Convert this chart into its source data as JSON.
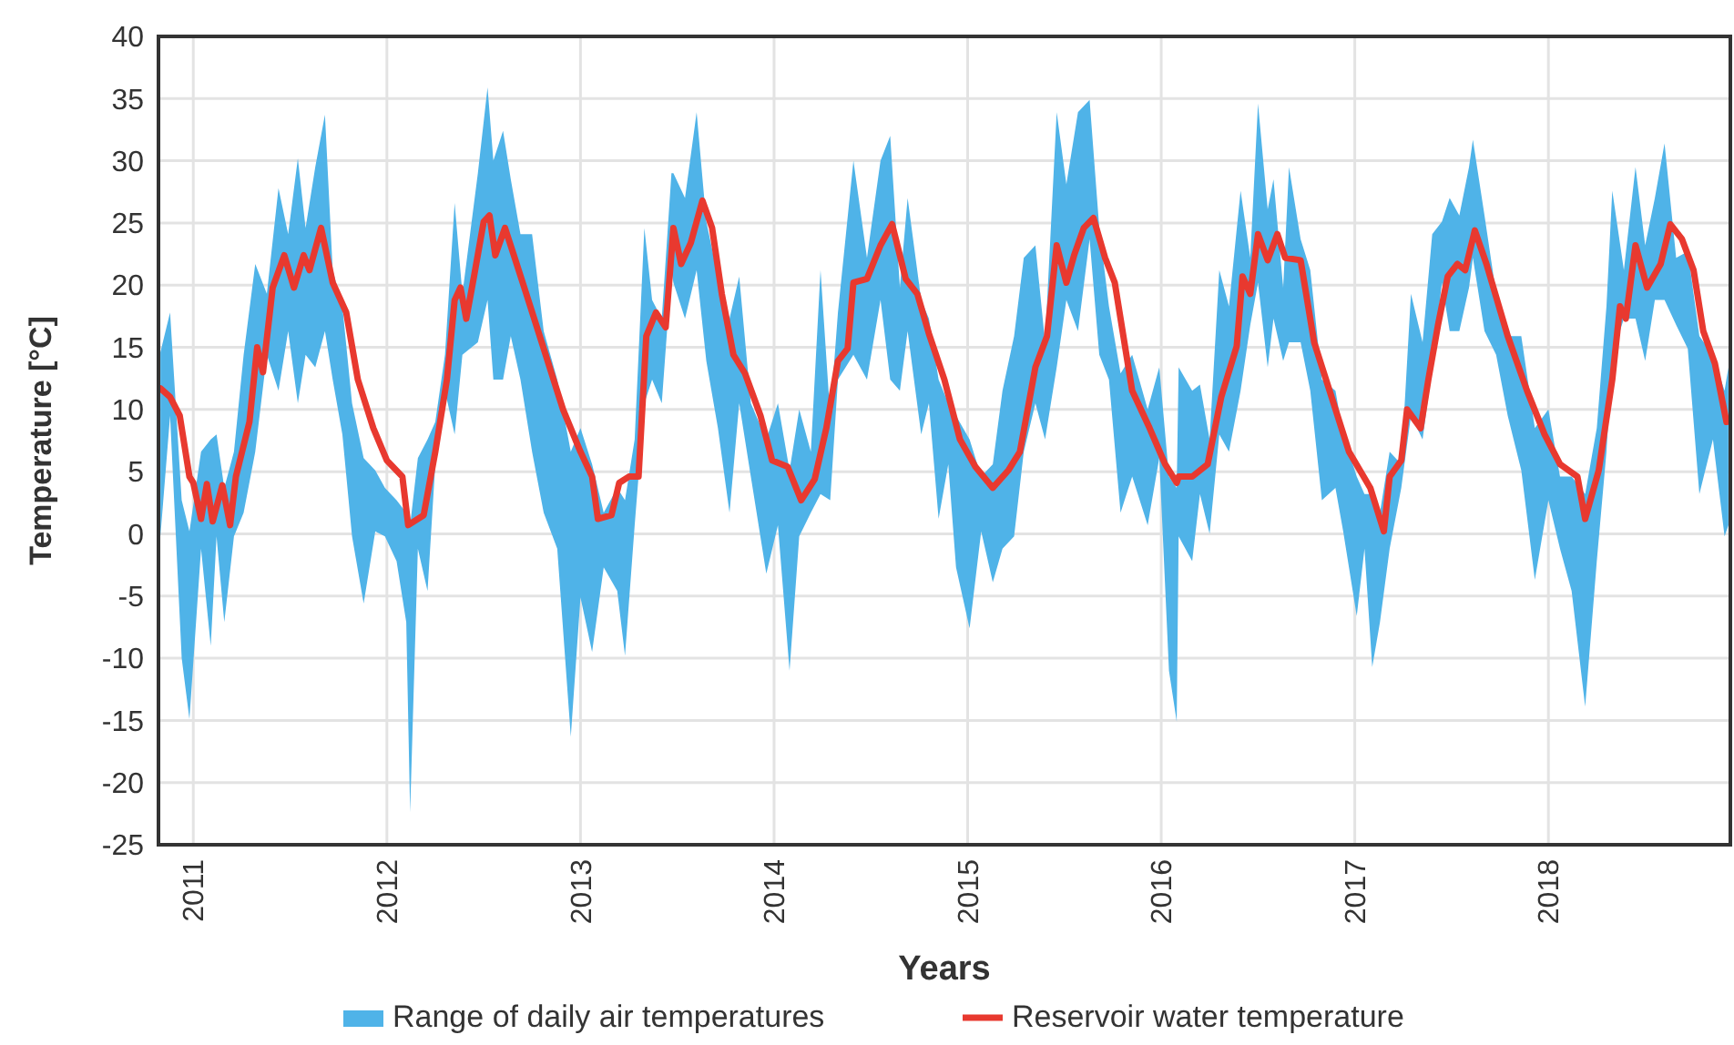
{
  "chart_data": {
    "type": "line",
    "xlabel": "Years",
    "ylabel": "Temperature [°C]",
    "xlim": [
      2010.82,
      2018.94
    ],
    "xticks": [
      2011,
      2012,
      2013,
      2014,
      2015,
      2016,
      2017,
      2018
    ],
    "ylim": [
      -25,
      40
    ],
    "yticks": [
      -25,
      -20,
      -15,
      -10,
      -5,
      0,
      5,
      10,
      15,
      20,
      25,
      30,
      35,
      40
    ],
    "grid": true,
    "legend": "bottom",
    "series": [
      {
        "type": "line",
        "name": "Range of daily air temperatures",
        "color": "#4fb3e8",
        "values": [
          null,
          null,
          null,
          null,
          null,
          null,
          null,
          null,
          null,
          null,
          null,
          null,
          null,
          null,
          null,
          null,
          null,
          null,
          null,
          null,
          null,
          null,
          null,
          null,
          null,
          null,
          null,
          null,
          null,
          null,
          null,
          null,
          null,
          null,
          null,
          null,
          null,
          null,
          null,
          null,
          null,
          null,
          null,
          null,
          null,
          null,
          null,
          null,
          null,
          null,
          null,
          null,
          null,
          null,
          null,
          null,
          null,
          null,
          null,
          null,
          null,
          null,
          null,
          null,
          null,
          null,
          null,
          null,
          null,
          null,
          null,
          null,
          null,
          null,
          null,
          null,
          null,
          null,
          null,
          null,
          null,
          null,
          null,
          null,
          null,
          null,
          null,
          null,
          null,
          null,
          null,
          null,
          null,
          null,
          null,
          null,
          null,
          null,
          null,
          null,
          null,
          null,
          null,
          null,
          null,
          null,
          null,
          null,
          null,
          null,
          null,
          null,
          null,
          null,
          null,
          null,
          null,
          null,
          null,
          null,
          null,
          null,
          null,
          null,
          null,
          null,
          null,
          null,
          null,
          null,
          null,
          null,
          null,
          null,
          null,
          null,
          null,
          null,
          null,
          null,
          null,
          null,
          null,
          null,
          null,
          null,
          null,
          null,
          null,
          null,
          null,
          null,
          null,
          null,
          null
        ],
        "x": [
          2010.83,
          2010.88,
          2010.94,
          2010.98,
          2011.04,
          2011.09,
          2011.12,
          2011.16,
          2011.21,
          2011.26,
          2011.32,
          2011.38,
          2011.44,
          2011.49,
          2011.54,
          2011.58,
          2011.63,
          2011.68,
          2011.72,
          2011.77,
          2011.82,
          2011.88,
          2011.94,
          2011.99,
          2012.05,
          2012.1,
          2012.12,
          2012.16,
          2012.21,
          2012.25,
          2012.3,
          2012.35,
          2012.39,
          2012.47,
          2012.52,
          2012.55,
          2012.6,
          2012.64,
          2012.69,
          2012.75,
          2012.81,
          2012.88,
          2012.95,
          2013.0,
          2013.06,
          2013.12,
          2013.19,
          2013.23,
          2013.28,
          2013.33,
          2013.37,
          2013.42,
          2013.47,
          2013.48,
          2013.54,
          2013.6,
          2013.65,
          2013.71,
          2013.77,
          2013.82,
          2013.88,
          2013.96,
          2014.02,
          2014.08,
          2014.13,
          2014.19,
          2014.24,
          2014.29,
          2014.33,
          2014.41,
          2014.48,
          2014.55,
          2014.6,
          2014.65,
          2014.69,
          2014.76,
          2014.8,
          2014.85,
          2014.9,
          2014.94,
          2015.01,
          2015.07,
          2015.13,
          2015.18,
          2015.24,
          2015.29,
          2015.35,
          2015.4,
          2015.46,
          2015.51,
          2015.57,
          2015.63,
          2015.68,
          2015.73,
          2015.79,
          2015.85,
          2015.93,
          2015.99,
          2016.04,
          2016.08,
          2016.09,
          2016.16,
          2016.2,
          2016.25,
          2016.3,
          2016.35,
          2016.41,
          2016.46,
          2016.5,
          2016.55,
          2016.58,
          2016.63,
          2016.66,
          2016.72,
          2016.77,
          2016.83,
          2016.9,
          2016.94,
          2017.01,
          2017.05,
          2017.09,
          2017.13,
          2017.18,
          2017.24,
          2017.29,
          2017.35,
          2017.4,
          2017.45,
          2017.49,
          2017.54,
          2017.59,
          2017.61,
          2017.67,
          2017.73,
          2017.79,
          2017.86,
          2017.93,
          2018.0,
          2018.06,
          2018.12,
          2018.19,
          2018.25,
          2018.3,
          2018.33,
          2018.39,
          2018.45,
          2018.5,
          2018.55,
          2018.6,
          2018.66,
          2018.72,
          2018.78,
          2018.85,
          2018.91,
          2018.93
        ],
        "upper": [
          14.6,
          17.8,
          2.7,
          0.2,
          6.6,
          7.6,
          8,
          3.7,
          6.6,
          14.4,
          21.7,
          19.3,
          27.8,
          24.1,
          30.2,
          24.6,
          29.5,
          33.7,
          21.2,
          18.3,
          10.5,
          6.1,
          5.1,
          3.7,
          2.7,
          1.7,
          0.7,
          6.1,
          7.6,
          9,
          14.4,
          26.6,
          19.3,
          29,
          35.9,
          30,
          32.4,
          28.5,
          24.1,
          24.1,
          16.3,
          12.4,
          6.6,
          8.5,
          5.6,
          1.7,
          3.7,
          2.7,
          7.6,
          24.6,
          18.8,
          17.3,
          29,
          29,
          27,
          33.9,
          25.1,
          20.7,
          17.3,
          20.7,
          10.5,
          7.6,
          10.5,
          5.1,
          10,
          6.6,
          21.2,
          9.5,
          17.8,
          30,
          22.2,
          30,
          32,
          19.8,
          27,
          18.8,
          17.3,
          12.4,
          10.5,
          9.5,
          7.6,
          4.6,
          5.6,
          11.5,
          15.9,
          22.2,
          23.2,
          15.4,
          33.9,
          28.1,
          33.9,
          34.9,
          24.6,
          18.3,
          12.9,
          14.4,
          10,
          13.4,
          4.6,
          3.7,
          13.4,
          11.5,
          12,
          7.6,
          21.2,
          18.3,
          27.6,
          22.2,
          34.6,
          26.1,
          28.5,
          19.8,
          29.5,
          23.7,
          21.2,
          12.4,
          11.5,
          8,
          4.6,
          3.2,
          3.2,
          1.7,
          6.6,
          5.6,
          19.3,
          15.4,
          24.1,
          25.1,
          27,
          25.6,
          29.5,
          31.7,
          25.6,
          19.3,
          15.9,
          15.9,
          8.5,
          10,
          4.6,
          4.6,
          3.2,
          8.5,
          18.3,
          27.6,
          21.2,
          29.5,
          23.2,
          27,
          31.4,
          22.2,
          22.7,
          15.9,
          14.4,
          11.5,
          13.4
        ],
        "lower": [
          -0.2,
          9.5,
          -10,
          -14.9,
          -1.2,
          -9,
          -0.2,
          -7.1,
          -0.2,
          1.7,
          6.6,
          14.4,
          11.5,
          16.3,
          10.5,
          14.4,
          13.4,
          16.3,
          12.4,
          8,
          -0.2,
          -5.6,
          0.2,
          -0.2,
          -2.2,
          -7.1,
          -22.4,
          -1.2,
          -4.6,
          5.6,
          11.5,
          8,
          14.4,
          15.4,
          18.8,
          12.4,
          12.4,
          15.9,
          12.4,
          6.6,
          1.7,
          -1.2,
          -16.3,
          -5.1,
          -9.5,
          -2.7,
          -4.6,
          -9.8,
          0.7,
          10.5,
          12.4,
          10.5,
          21.2,
          20.2,
          17.3,
          21.2,
          13.9,
          8.5,
          1.7,
          10.5,
          4.6,
          -3.2,
          0.7,
          -11,
          -0.2,
          1.7,
          3.2,
          2.7,
          12.4,
          14.4,
          12.4,
          18.8,
          12.4,
          11.5,
          16.3,
          8,
          10.5,
          1.2,
          5.6,
          -2.7,
          -7.6,
          0.2,
          -3.9,
          -1.2,
          -0.2,
          6.6,
          10.5,
          7.6,
          13.4,
          18.8,
          16.3,
          23.7,
          14.4,
          12.4,
          1.7,
          4.6,
          0.7,
          6.1,
          -11,
          -15.1,
          -0.2,
          -2.2,
          3.2,
          0,
          8,
          6.6,
          11.5,
          16.8,
          20.2,
          13.4,
          17.3,
          13.9,
          15.4,
          15.4,
          11.5,
          2.7,
          3.7,
          0.2,
          -6.6,
          -1.2,
          -10.7,
          -7.1,
          -1.2,
          3.7,
          9.5,
          7.6,
          13.4,
          20.2,
          16.3,
          16.3,
          19.8,
          22.2,
          16.3,
          14.4,
          9.5,
          5.1,
          -3.7,
          2.7,
          -1.2,
          -4.6,
          -13.9,
          -2.2,
          6.6,
          14.4,
          17.3,
          17.3,
          13.9,
          18.8,
          18.8,
          16.8,
          14.9,
          3.2,
          7.6,
          -0.2,
          0.7
        ]
      },
      {
        "name": "Reservoir water temperature",
        "color": "#e8392f",
        "x": [
          2010.83,
          2010.88,
          2010.93,
          2010.98,
          2011.0,
          2011.04,
          2011.07,
          2011.1,
          2011.15,
          2011.19,
          2011.22,
          2011.29,
          2011.33,
          2011.36,
          2011.41,
          2011.47,
          2011.52,
          2011.57,
          2011.6,
          2011.66,
          2011.72,
          2011.79,
          2011.85,
          2011.93,
          2012.0,
          2012.08,
          2012.11,
          2012.19,
          2012.25,
          2012.31,
          2012.35,
          2012.38,
          2012.41,
          2012.45,
          2012.5,
          2012.53,
          2012.56,
          2012.61,
          2012.66,
          2012.72,
          2012.81,
          2012.91,
          2013.0,
          2013.06,
          2013.09,
          2013.16,
          2013.2,
          2013.25,
          2013.3,
          2013.34,
          2013.39,
          2013.44,
          2013.48,
          2013.52,
          2013.57,
          2013.63,
          2013.68,
          2013.73,
          2013.79,
          2013.85,
          2013.93,
          2013.99,
          2014.07,
          2014.14,
          2014.21,
          2014.27,
          2014.33,
          2014.38,
          2014.41,
          2014.48,
          2014.55,
          2014.61,
          2014.68,
          2014.74,
          2014.8,
          2014.88,
          2014.96,
          2015.04,
          2015.13,
          2015.21,
          2015.27,
          2015.35,
          2015.41,
          2015.46,
          2015.51,
          2015.55,
          2015.6,
          2015.65,
          2015.71,
          2015.76,
          2015.85,
          2015.94,
          2016.02,
          2016.08,
          2016.09,
          2016.16,
          2016.24,
          2016.31,
          2016.39,
          2016.42,
          2016.46,
          2016.5,
          2016.55,
          2016.6,
          2016.64,
          2016.72,
          2016.79,
          2016.88,
          2016.97,
          2017.08,
          2017.15,
          2017.18,
          2017.24,
          2017.27,
          2017.34,
          2017.38,
          2017.43,
          2017.48,
          2017.53,
          2017.57,
          2017.62,
          2017.68,
          2017.79,
          2017.89,
          2017.98,
          2018.06,
          2018.15,
          2018.19,
          2018.26,
          2018.33,
          2018.37,
          2018.4,
          2018.45,
          2018.51,
          2018.58,
          2018.63,
          2018.69,
          2018.75,
          2018.8,
          2018.86,
          2018.92
        ],
        "values": [
          11.7,
          11,
          9.5,
          4.6,
          4.1,
          1.2,
          4,
          1,
          3.9,
          0.7,
          4.6,
          9,
          15,
          13,
          19.8,
          22.4,
          19.8,
          22.4,
          21.2,
          24.6,
          20.2,
          17.8,
          12.4,
          8.5,
          5.9,
          4.6,
          0.7,
          1.5,
          6.6,
          12.4,
          18.8,
          19.8,
          17.3,
          20.7,
          25.1,
          25.6,
          22.4,
          24.6,
          22.2,
          19.3,
          14.9,
          10,
          6.6,
          4.6,
          1.2,
          1.5,
          4.1,
          4.6,
          4.6,
          15.9,
          17.8,
          16.6,
          24.6,
          21.7,
          23.4,
          26.8,
          24.6,
          19.3,
          14.4,
          12.9,
          9.5,
          5.9,
          5.4,
          2.7,
          4.4,
          8.5,
          13.9,
          14.9,
          20.2,
          20.5,
          23.2,
          24.9,
          20.5,
          19.3,
          16.1,
          12.4,
          7.6,
          5.4,
          3.7,
          5.1,
          6.6,
          13.4,
          15.9,
          23.2,
          20.2,
          22.4,
          24.6,
          25.4,
          22.2,
          20.2,
          11.5,
          8.5,
          5.6,
          4.1,
          4.6,
          4.6,
          5.6,
          11,
          15.1,
          20.7,
          19.3,
          24.1,
          22,
          24.1,
          22.2,
          22,
          15.4,
          11,
          6.6,
          3.7,
          0.2,
          4.6,
          5.9,
          10,
          8.5,
          12.4,
          16.8,
          20.7,
          21.7,
          21.2,
          24.4,
          21.7,
          15.9,
          11.5,
          8,
          5.6,
          4.6,
          1.2,
          5.1,
          12.4,
          18.3,
          17.3,
          23.2,
          19.8,
          21.7,
          24.9,
          23.7,
          21.2,
          16.3,
          13.7,
          9
        ]
      }
    ]
  }
}
